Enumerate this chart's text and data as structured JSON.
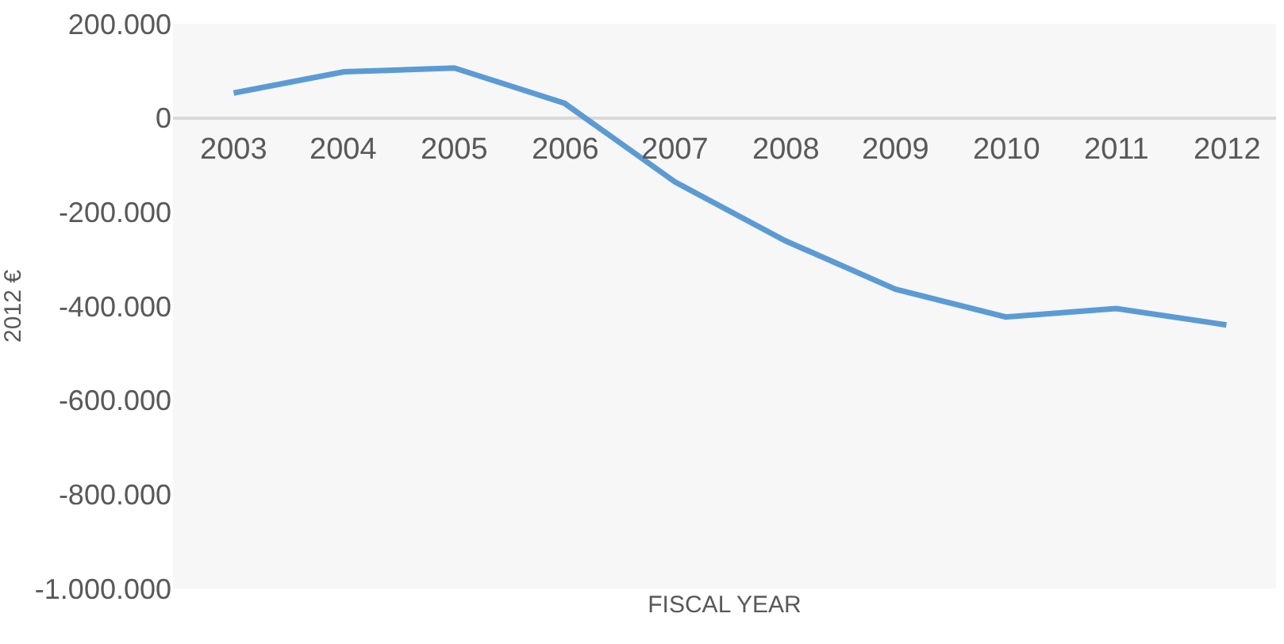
{
  "chart_data": {
    "type": "line",
    "xlabel": "FISCAL YEAR",
    "ylabel": "2012 €",
    "categories": [
      "2003",
      "2004",
      "2005",
      "2006",
      "2007",
      "2008",
      "2009",
      "2010",
      "2011",
      "2012"
    ],
    "series": [
      {
        "color": "#5b9bd5",
        "values": [
          53000,
          98000,
          106000,
          31000,
          -136000,
          -261000,
          -364000,
          -423000,
          -405000,
          -440000
        ]
      }
    ],
    "ylim": [
      -1000000,
      200000
    ],
    "yticks": [
      {
        "value": 200000,
        "label": "200.000"
      },
      0,
      {
        "value": -200000,
        "label": "-200.000"
      },
      {
        "value": -400000,
        "label": "-400.000"
      },
      {
        "value": -600000,
        "label": "-600.000"
      },
      {
        "value": -800000,
        "label": "-800.000"
      },
      {
        "value": -1000000,
        "label": "-1.000.000"
      }
    ],
    "grid": false,
    "marker": "none",
    "line_style": "solid"
  }
}
